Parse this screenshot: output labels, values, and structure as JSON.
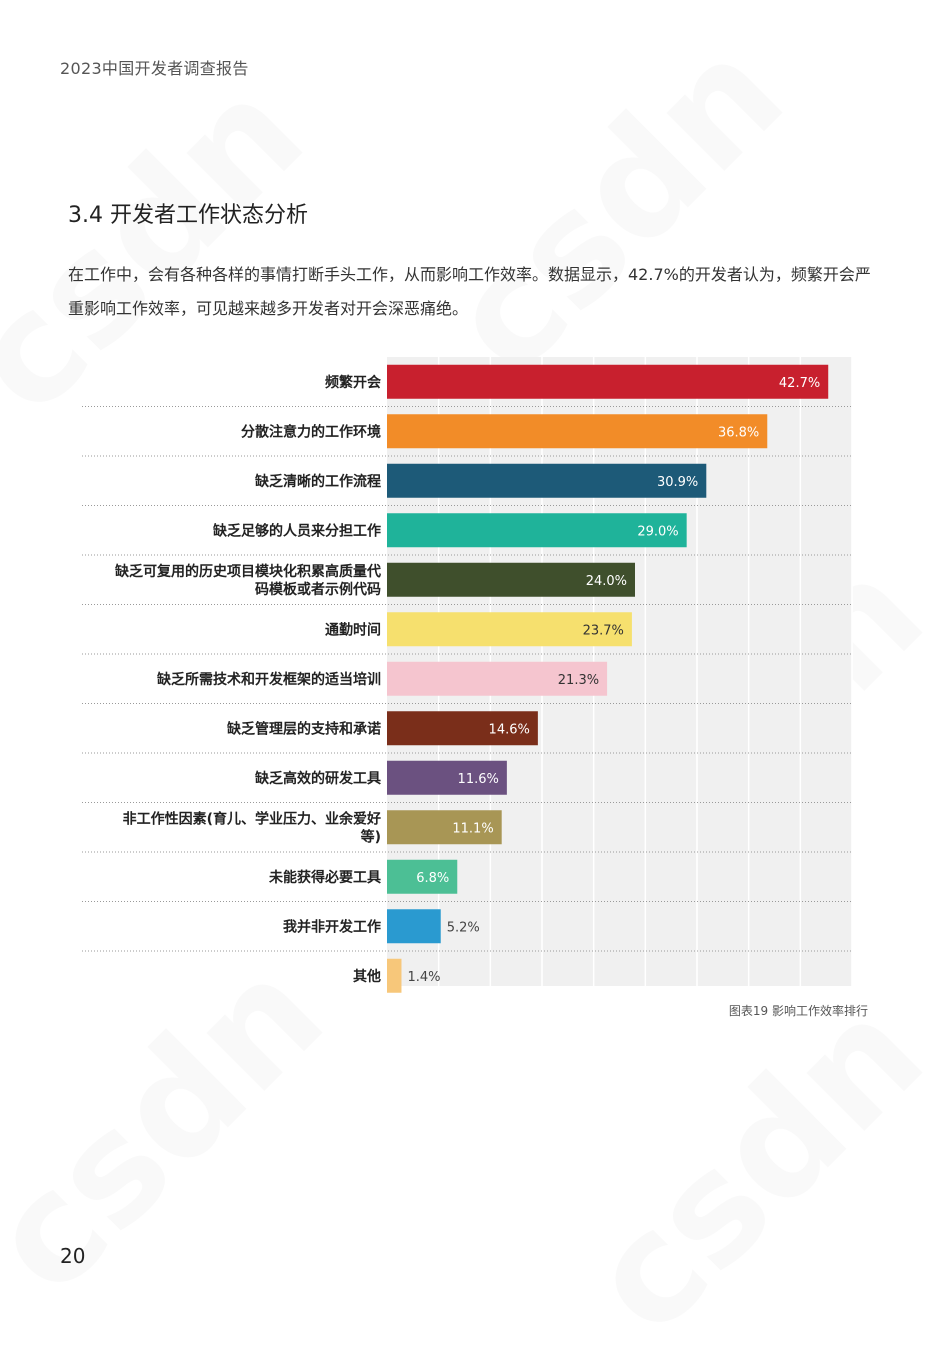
{
  "header": {
    "report_title": "2023中国开发者调查报告"
  },
  "section": {
    "title": "3.4 开发者工作状态分析",
    "intro": "在工作中，会有各种各样的事情打断手头工作，从而影响工作效率。数据显示，42.7%的开发者认为，频繁开会严重影响工作效率，可见越来越多开发者对开会深恶痛绝。"
  },
  "chart_data": {
    "type": "bar",
    "orientation": "horizontal",
    "title": "",
    "xlabel": "",
    "ylabel": "",
    "xlim": [
      0,
      45
    ],
    "value_format": "percent",
    "grid": true,
    "categories": [
      [
        "频繁开会"
      ],
      [
        "分散注意力的工作环境"
      ],
      [
        "缺乏清晰的工作流程"
      ],
      [
        "缺乏足够的人员来分担工作"
      ],
      [
        "缺乏可复用的历史项目模块化积累高质量代",
        "码模板或者示例代码"
      ],
      [
        "通勤时间"
      ],
      [
        "缺乏所需技术和开发框架的适当培训"
      ],
      [
        "缺乏管理层的支持和承诺"
      ],
      [
        "缺乏高效的研发工具"
      ],
      [
        "非工作性因素(育儿、学业压力、业余爱好",
        "等)"
      ],
      [
        "未能获得必要工具"
      ],
      [
        "我并非开发工作"
      ],
      [
        "其他"
      ]
    ],
    "values": [
      42.7,
      36.8,
      30.9,
      29.0,
      24.0,
      23.7,
      21.3,
      14.6,
      11.6,
      11.1,
      6.8,
      5.2,
      1.4
    ],
    "value_labels": [
      "42.7%",
      "36.8%",
      "30.9%",
      "29.0%",
      "24.0%",
      "23.7%",
      "21.3%",
      "14.6%",
      "11.6%",
      "11.1%",
      "6.8%",
      "5.2%",
      "1.4%"
    ],
    "colors": [
      "#c8202e",
      "#f28c28",
      "#1d5a78",
      "#1fb39a",
      "#3f4f2c",
      "#f6e06e",
      "#f5c5cf",
      "#7a2e1a",
      "#6b5180",
      "#a89655",
      "#4cbf95",
      "#2a9ad0",
      "#f7c77a"
    ],
    "label_colors": [
      "#ffffff",
      "#ffffff",
      "#ffffff",
      "#ffffff",
      "#ffffff",
      "#333333",
      "#333333",
      "#ffffff",
      "#ffffff",
      "#ffffff",
      "#ffffff",
      "#ffffff",
      "#333333"
    ]
  },
  "figure": {
    "caption": "图表19 影响工作效率排行"
  },
  "footer": {
    "page_number": "20"
  }
}
